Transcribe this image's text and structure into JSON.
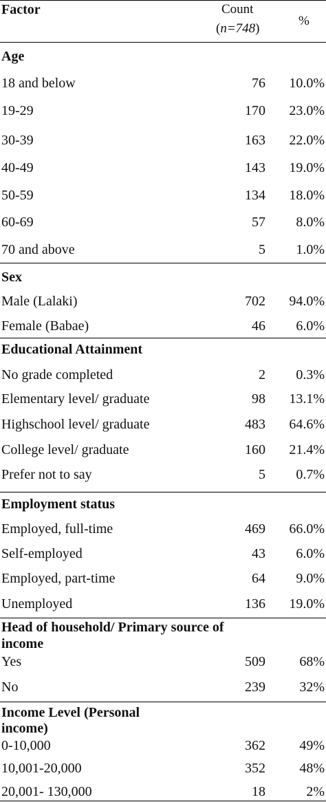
{
  "header": {
    "factor": "Factor",
    "count": "Count",
    "n_label_italic": "n=748",
    "n_open": "(",
    "n_close": ")",
    "percent": "%"
  },
  "sections": [
    {
      "title": "Age",
      "rows": [
        {
          "label": "18 and below",
          "count": "76",
          "pct": "10.0%"
        },
        {
          "label": "19-29",
          "count": "170",
          "pct": "23.0%"
        },
        {
          "label": "30-39",
          "count": "163",
          "pct": "22.0%"
        },
        {
          "label": "40-49",
          "count": "143",
          "pct": "19.0%"
        },
        {
          "label": "50-59",
          "count": "134",
          "pct": "18.0%"
        },
        {
          "label": "60-69",
          "count": "57",
          "pct": "8.0%"
        },
        {
          "label": "70 and above",
          "count": "5",
          "pct": "1.0%"
        }
      ]
    },
    {
      "title": "Sex",
      "rows": [
        {
          "label": "Male (Lalaki)",
          "count": "702",
          "pct": "94.0%"
        },
        {
          "label": "Female (Babae)",
          "count": "46",
          "pct": "6.0%"
        }
      ]
    },
    {
      "title": "Educational Attainment",
      "rows": [
        {
          "label": "No grade completed",
          "count": "2",
          "pct": "0.3%"
        },
        {
          "label": "Elementary level/ graduate",
          "count": "98",
          "pct": "13.1%"
        },
        {
          "label": "Highschool level/ graduate",
          "count": "483",
          "pct": "64.6%"
        },
        {
          "label": "College level/ graduate",
          "count": "160",
          "pct": "21.4%"
        },
        {
          "label": "Prefer not to say",
          "count": "5",
          "pct": "0.7%"
        }
      ]
    },
    {
      "title": "Employment status",
      "rows": [
        {
          "label": "Employed, full-time",
          "count": "469",
          "pct": "66.0%"
        },
        {
          "label": "Self-employed",
          "count": "43",
          "pct": "6.0%"
        },
        {
          "label": "Employed, part-time",
          "count": "64",
          "pct": "9.0%"
        },
        {
          "label": "Unemployed",
          "count": "136",
          "pct": "19.0%"
        }
      ]
    },
    {
      "title_line1": "Head of household/ Primary source of",
      "title_line2": "income",
      "rows": [
        {
          "label": "Yes",
          "count": "509",
          "pct": "68%"
        },
        {
          "label": "No",
          "count": "239",
          "pct": "32%"
        }
      ]
    },
    {
      "title_line1": "Income Level (Personal",
      "title_line2": "income)",
      "rows": [
        {
          "label": "0-10,000",
          "count": "362",
          "pct": "49%"
        },
        {
          "label": "10,001-20,000",
          "count": "352",
          "pct": "48%"
        },
        {
          "label": "20,001- 130,000",
          "count": "18",
          "pct": "2%"
        }
      ]
    }
  ]
}
